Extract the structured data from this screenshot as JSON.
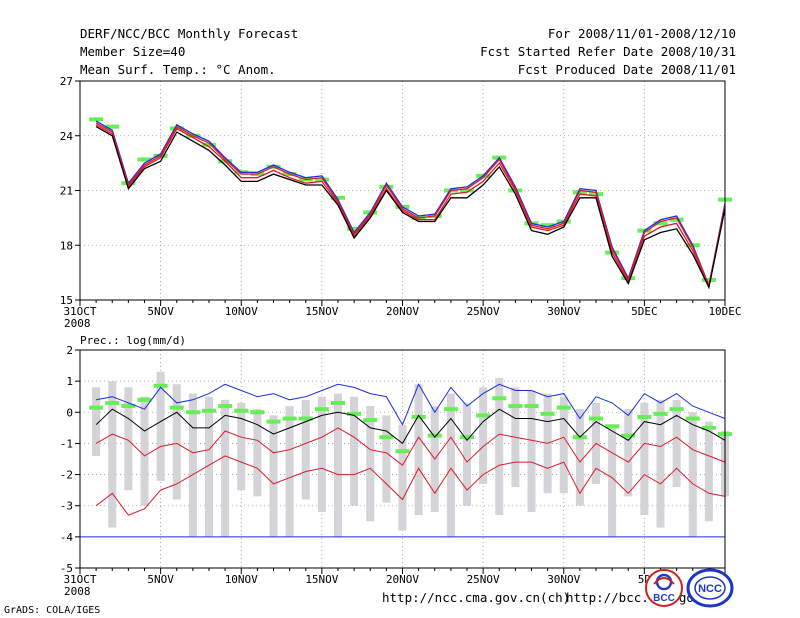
{
  "header": {
    "title": "DERF/NCC/BCC Monthly Forecast",
    "member_size": "Member Size=40",
    "variable_top": "Mean Surf. Temp.: °C Anom.",
    "period": "For 2008/11/01-2008/12/10",
    "started": "Fcst Started Refer Date 2008/10/31",
    "produced": "Fcst Produced Date 2008/11/01"
  },
  "footer": {
    "grads": "GrADS: COLA/IGES",
    "url1": "http://ncc.cma.gov.cn(ch)",
    "url2": "http://bcc.cma.gov.cn",
    "logo1_text": "BCC",
    "logo2_text": "NCC"
  },
  "colors": {
    "green": "#66ee55",
    "gray": "#d3d3d8",
    "blue": "#1a2ee0",
    "red": "#dd1a2a",
    "black": "#000000"
  },
  "chart_data": [
    {
      "type": "line",
      "title": "Mean Surf. Temp.: °C Anom.",
      "ylim": [
        15,
        27
      ],
      "yticks": [
        15,
        18,
        21,
        24,
        27
      ],
      "xlim": [
        0,
        40
      ],
      "xticks": [
        {
          "x": 0,
          "label": "31OCT",
          "sub": "2008"
        },
        {
          "x": 5,
          "label": "5NOV"
        },
        {
          "x": 10,
          "label": "10NOV"
        },
        {
          "x": 15,
          "label": "15NOV"
        },
        {
          "x": 20,
          "label": "20NOV"
        },
        {
          "x": 25,
          "label": "25NOV"
        },
        {
          "x": 30,
          "label": "30NOV"
        },
        {
          "x": 35,
          "label": "5DEC"
        },
        {
          "x": 40,
          "label": "10DEC"
        }
      ],
      "x": [
        1,
        2,
        3,
        4,
        5,
        6,
        7,
        8,
        9,
        10,
        11,
        12,
        13,
        14,
        15,
        16,
        17,
        18,
        19,
        20,
        21,
        22,
        23,
        24,
        25,
        26,
        27,
        28,
        29,
        30,
        31,
        32,
        33,
        34,
        35,
        36,
        37,
        38,
        39,
        40
      ],
      "markers": [
        24.9,
        24.5,
        21.4,
        22.7,
        22.9,
        24.4,
        24.0,
        23.5,
        22.6,
        22.0,
        21.9,
        22.3,
        21.9,
        21.6,
        21.6,
        20.6,
        18.9,
        19.8,
        21.2,
        20.1,
        19.5,
        19.6,
        21.0,
        21.0,
        21.8,
        22.8,
        21.0,
        19.2,
        19.1,
        19.3,
        20.9,
        20.8,
        17.6,
        16.2,
        18.8,
        19.2,
        19.4,
        18.0,
        16.1,
        20.5
      ],
      "series": [
        {
          "name": "upper",
          "color": "blue",
          "values": [
            24.8,
            24.3,
            21.4,
            22.5,
            23.0,
            24.6,
            24.1,
            23.7,
            22.8,
            22.0,
            22.0,
            22.4,
            22.0,
            21.7,
            21.8,
            20.5,
            18.7,
            19.8,
            21.4,
            20.1,
            19.6,
            19.7,
            21.1,
            21.2,
            21.8,
            22.8,
            21.2,
            19.2,
            19.0,
            19.3,
            21.1,
            21.0,
            17.9,
            16.2,
            18.8,
            19.4,
            19.6,
            18.0,
            15.8,
            20.3
          ]
        },
        {
          "name": "upper-mid",
          "color": "red",
          "values": [
            24.7,
            24.2,
            21.3,
            22.4,
            22.9,
            24.5,
            24.0,
            23.6,
            22.7,
            21.9,
            21.9,
            22.3,
            21.9,
            21.6,
            21.7,
            20.4,
            18.6,
            19.7,
            21.3,
            20.0,
            19.5,
            19.6,
            21.0,
            21.1,
            21.7,
            22.7,
            21.1,
            19.1,
            18.9,
            19.2,
            21.0,
            20.9,
            17.8,
            16.1,
            18.7,
            19.3,
            19.5,
            17.9,
            15.8,
            20.2
          ]
        },
        {
          "name": "lower-mid",
          "color": "red",
          "values": [
            24.6,
            24.1,
            21.2,
            22.3,
            22.8,
            24.4,
            23.9,
            23.4,
            22.6,
            21.7,
            21.7,
            22.1,
            21.7,
            21.4,
            21.5,
            20.3,
            18.5,
            19.6,
            21.1,
            19.9,
            19.4,
            19.4,
            20.8,
            20.9,
            21.5,
            22.5,
            21.0,
            19.0,
            18.8,
            19.1,
            20.8,
            20.7,
            17.6,
            16.0,
            18.5,
            19.0,
            19.2,
            17.7,
            15.7,
            20.1
          ]
        },
        {
          "name": "lower",
          "color": "black",
          "values": [
            24.5,
            24.0,
            21.1,
            22.2,
            22.6,
            24.2,
            23.7,
            23.2,
            22.4,
            21.5,
            21.5,
            21.9,
            21.6,
            21.3,
            21.3,
            20.2,
            18.4,
            19.5,
            21.0,
            19.8,
            19.3,
            19.3,
            20.6,
            20.6,
            21.3,
            22.3,
            20.8,
            18.8,
            18.6,
            19.0,
            20.6,
            20.6,
            17.4,
            15.9,
            18.3,
            18.7,
            18.9,
            17.5,
            15.7,
            20.0
          ]
        }
      ]
    },
    {
      "type": "line",
      "title": "Prec.: log(mm/d)",
      "ylim": [
        -5,
        2
      ],
      "yticks": [
        -5,
        -4,
        -3,
        -2,
        -1,
        0,
        1,
        2
      ],
      "xlim": [
        0,
        40
      ],
      "xticks": [
        {
          "x": 0,
          "label": "31OCT",
          "sub": "2008"
        },
        {
          "x": 5,
          "label": "5NOV"
        },
        {
          "x": 10,
          "label": "10NOV"
        },
        {
          "x": 15,
          "label": "15NOV"
        },
        {
          "x": 20,
          "label": "20NOV"
        },
        {
          "x": 25,
          "label": "25NOV"
        },
        {
          "x": 30,
          "label": "30NOV"
        },
        {
          "x": 35,
          "label": "5D"
        }
      ],
      "x": [
        1,
        2,
        3,
        4,
        5,
        6,
        7,
        8,
        9,
        10,
        11,
        12,
        13,
        14,
        15,
        16,
        17,
        18,
        19,
        20,
        21,
        22,
        23,
        24,
        25,
        26,
        27,
        28,
        29,
        30,
        31,
        32,
        33,
        34,
        35,
        36,
        37,
        38,
        39,
        40
      ],
      "bars": [
        [
          -1.4,
          0.8
        ],
        [
          -3.7,
          1.0
        ],
        [
          -2.5,
          0.8
        ],
        [
          -3.0,
          0.5
        ],
        [
          -2.2,
          1.3
        ],
        [
          -2.8,
          0.9
        ],
        [
          -4.0,
          0.6
        ],
        [
          -4.0,
          0.5
        ],
        [
          -4.0,
          0.4
        ],
        [
          -2.5,
          0.3
        ],
        [
          -2.7,
          0.1
        ],
        [
          -4.0,
          -0.1
        ],
        [
          -4.0,
          0.2
        ],
        [
          -2.8,
          0.4
        ],
        [
          -3.2,
          0.5
        ],
        [
          -4.0,
          0.6
        ],
        [
          -3.0,
          0.5
        ],
        [
          -3.5,
          0.2
        ],
        [
          -2.9,
          -0.1
        ],
        [
          -3.8,
          -0.4
        ],
        [
          -3.3,
          0.9
        ],
        [
          -3.2,
          0.2
        ],
        [
          -4.0,
          0.6
        ],
        [
          -3.0,
          0.3
        ],
        [
          -2.3,
          0.8
        ],
        [
          -3.3,
          1.1
        ],
        [
          -2.4,
          0.8
        ],
        [
          -3.2,
          0.7
        ],
        [
          -2.6,
          0.6
        ],
        [
          -2.6,
          0.5
        ],
        [
          -3.0,
          0.1
        ],
        [
          -2.3,
          0.3
        ],
        [
          -4.0,
          -0.5
        ],
        [
          -2.7,
          0.1
        ],
        [
          -3.3,
          0.3
        ],
        [
          -3.7,
          0.4
        ],
        [
          -2.4,
          0.4
        ],
        [
          -4.0,
          0.0
        ],
        [
          -3.5,
          -0.3
        ],
        [
          -2.7,
          -0.6
        ]
      ],
      "markers": [
        0.15,
        0.3,
        0.2,
        0.4,
        0.85,
        0.15,
        0.0,
        0.05,
        0.2,
        0.05,
        0.0,
        -0.3,
        -0.2,
        -0.2,
        0.1,
        0.3,
        -0.05,
        -0.25,
        -0.8,
        -1.25,
        -0.15,
        -0.75,
        0.1,
        -0.8,
        -0.1,
        0.45,
        0.2,
        0.2,
        -0.05,
        0.15,
        -0.8,
        -0.2,
        -0.45,
        -0.75,
        -0.15,
        -0.05,
        0.1,
        -0.2,
        -0.5,
        -0.7
      ],
      "series": [
        {
          "name": "max",
          "color": "blue",
          "values": [
            0.4,
            0.5,
            0.3,
            0.1,
            0.8,
            0.3,
            0.4,
            0.6,
            0.9,
            0.7,
            0.5,
            0.6,
            0.4,
            0.5,
            0.7,
            0.9,
            0.8,
            0.6,
            0.5,
            -0.4,
            0.9,
            0.0,
            0.8,
            0.2,
            0.6,
            0.9,
            0.7,
            0.7,
            0.5,
            0.6,
            -0.2,
            0.5,
            0.3,
            -0.1,
            0.6,
            0.3,
            0.6,
            0.2,
            0.0,
            -0.2
          ]
        },
        {
          "name": "median",
          "color": "black",
          "values": [
            -0.4,
            0.1,
            -0.2,
            -0.6,
            -0.3,
            0.0,
            -0.5,
            -0.5,
            -0.1,
            -0.2,
            -0.4,
            -0.7,
            -0.5,
            -0.3,
            -0.1,
            0.0,
            -0.1,
            -0.5,
            -0.6,
            -1.0,
            -0.1,
            -0.8,
            -0.2,
            -0.9,
            -0.3,
            0.1,
            -0.2,
            -0.2,
            -0.3,
            -0.2,
            -0.8,
            -0.3,
            -0.6,
            -0.9,
            -0.3,
            -0.4,
            -0.1,
            -0.4,
            -0.6,
            -0.9
          ]
        },
        {
          "name": "lower-mid",
          "color": "red",
          "values": [
            -1.0,
            -0.7,
            -0.9,
            -1.4,
            -1.1,
            -1.0,
            -1.3,
            -1.2,
            -0.6,
            -0.8,
            -0.9,
            -1.3,
            -1.2,
            -1.0,
            -0.8,
            -0.5,
            -0.8,
            -1.2,
            -1.3,
            -1.7,
            -0.8,
            -1.5,
            -0.8,
            -1.6,
            -1.1,
            -0.7,
            -0.8,
            -0.9,
            -1.0,
            -0.8,
            -1.6,
            -1.0,
            -1.3,
            -1.6,
            -1.0,
            -1.1,
            -0.8,
            -1.2,
            -1.4,
            -1.6
          ]
        },
        {
          "name": "min",
          "color": "red",
          "values": [
            -3.0,
            -2.6,
            -3.3,
            -3.1,
            -2.5,
            -2.3,
            -2.0,
            -1.7,
            -1.4,
            -1.6,
            -1.8,
            -2.3,
            -2.1,
            -1.9,
            -1.8,
            -2.0,
            -2.0,
            -1.8,
            -2.3,
            -2.8,
            -1.8,
            -2.6,
            -1.8,
            -2.5,
            -2.0,
            -1.7,
            -1.6,
            -1.6,
            -1.8,
            -1.6,
            -2.6,
            -1.8,
            -2.1,
            -2.6,
            -2.0,
            -2.3,
            -1.8,
            -2.3,
            -2.6,
            -2.7
          ]
        }
      ],
      "baseline": -4
    }
  ]
}
